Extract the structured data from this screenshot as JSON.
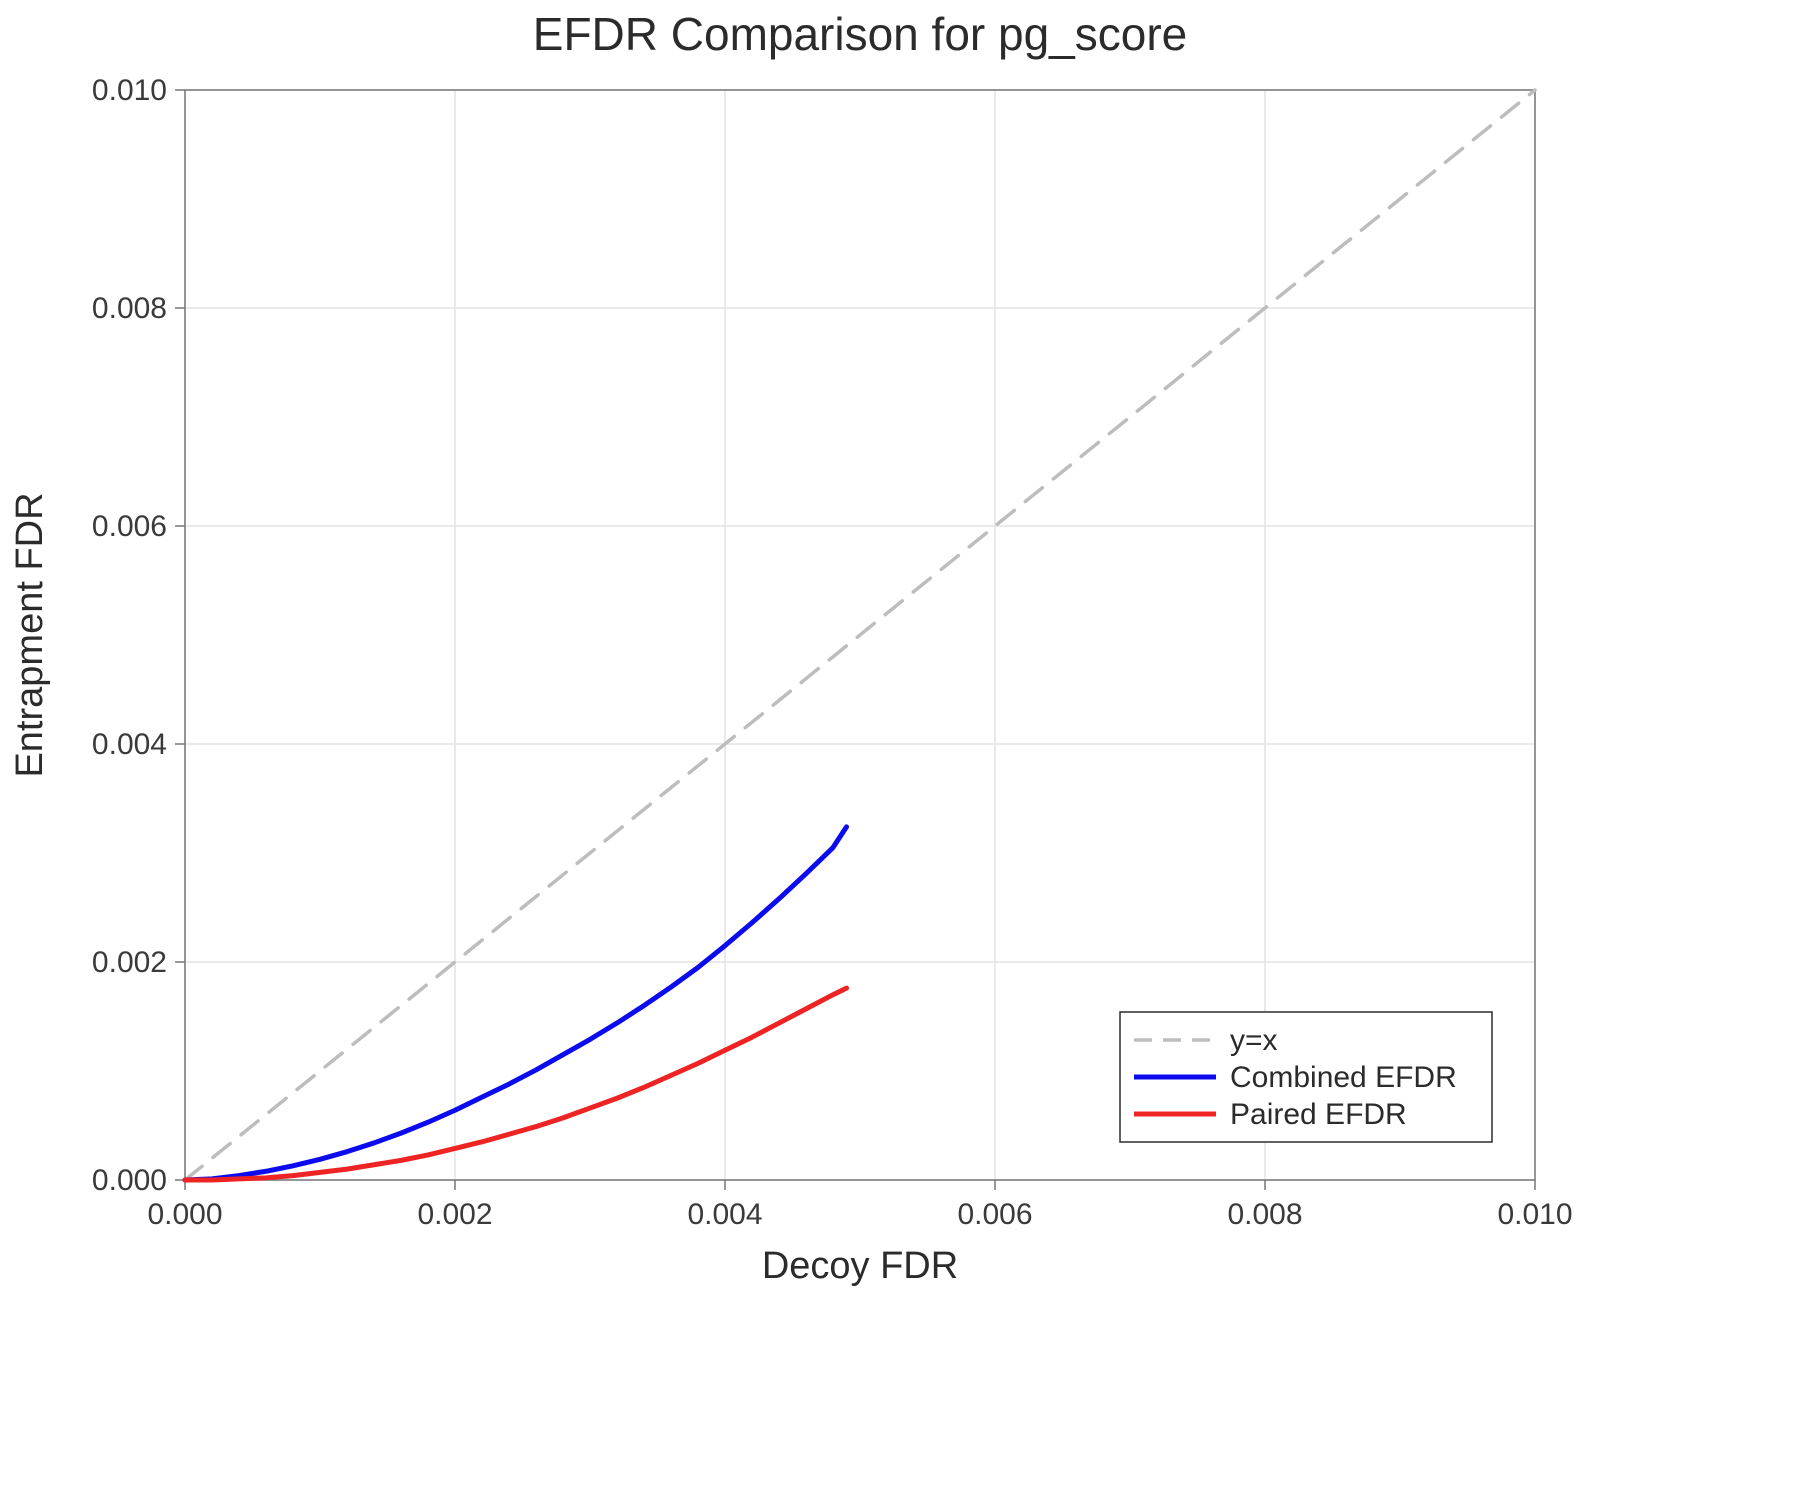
{
  "chart_data": {
    "type": "line",
    "title": "EFDR Comparison for pg_score",
    "xlabel": "Decoy FDR",
    "ylabel": "Entrapment FDR",
    "xlim": [
      0.0,
      0.01
    ],
    "ylim": [
      0.0,
      0.01
    ],
    "xticks": [
      0.0,
      0.002,
      0.004,
      0.006,
      0.008,
      0.01
    ],
    "yticks": [
      0.0,
      0.002,
      0.004,
      0.006,
      0.008,
      0.01
    ],
    "tick_format_decimals": 3,
    "grid": true,
    "legend_position": "bottom-right",
    "colors": {
      "background": "#ffffff",
      "grid": "#e4e4e4",
      "frame": "#777777",
      "tick_label": "#3a3a3a",
      "title": "#2b2b2b",
      "legend_border": "#2b2b2b"
    },
    "series": [
      {
        "name": "y=x",
        "color": "#bdbdbd",
        "dashed": true,
        "width": 3.5,
        "x": [
          0.0,
          0.01
        ],
        "y": [
          0.0,
          0.01
        ]
      },
      {
        "name": "Combined EFDR",
        "color": "#0b0bee",
        "dashed": false,
        "width": 5,
        "x": [
          0.0,
          0.0002,
          0.0004,
          0.0006,
          0.0008,
          0.001,
          0.0012,
          0.0014,
          0.0016,
          0.0018,
          0.002,
          0.0022,
          0.0024,
          0.0026,
          0.0028,
          0.003,
          0.0032,
          0.0034,
          0.0036,
          0.0038,
          0.004,
          0.0042,
          0.0044,
          0.0046,
          0.0048,
          0.0049
        ],
        "y": [
          0.0,
          1e-05,
          4e-05,
          8e-05,
          0.00013,
          0.00019,
          0.00026,
          0.00034,
          0.00043,
          0.00053,
          0.00064,
          0.00076,
          0.00088,
          0.00101,
          0.00115,
          0.00129,
          0.00144,
          0.0016,
          0.00177,
          0.00195,
          0.00215,
          0.00236,
          0.00258,
          0.00281,
          0.00305,
          0.00324
        ]
      },
      {
        "name": "Paired EFDR",
        "color": "#ee2424",
        "dashed": false,
        "width": 5,
        "x": [
          0.0,
          0.0002,
          0.0004,
          0.0006,
          0.0008,
          0.001,
          0.0012,
          0.0014,
          0.0016,
          0.0018,
          0.002,
          0.0022,
          0.0024,
          0.0026,
          0.0028,
          0.003,
          0.0032,
          0.0034,
          0.0036,
          0.0038,
          0.004,
          0.0042,
          0.0044,
          0.0046,
          0.0048,
          0.0049
        ],
        "y": [
          0.0,
          0.0,
          1e-05,
          2e-05,
          4e-05,
          7e-05,
          0.0001,
          0.00014,
          0.00018,
          0.00023,
          0.00029,
          0.00035,
          0.00042,
          0.00049,
          0.00057,
          0.00066,
          0.00075,
          0.00085,
          0.00096,
          0.00107,
          0.00119,
          0.00131,
          0.00144,
          0.00157,
          0.0017,
          0.00176
        ]
      }
    ]
  }
}
